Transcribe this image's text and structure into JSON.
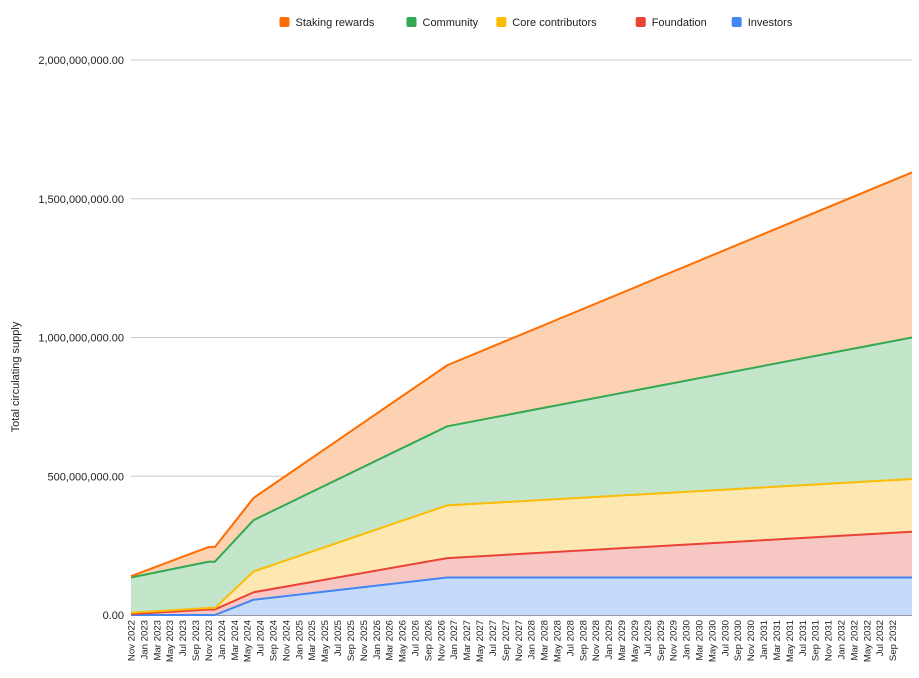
{
  "chart_data": {
    "type": "area",
    "stacked": true,
    "ylabel": "Total circulating supply",
    "ylim": [
      0,
      2000000000
    ],
    "grid": true,
    "legend_position": "top",
    "y_ticks": [
      {
        "value": 0,
        "label": "0.00"
      },
      {
        "value": 500000000,
        "label": "500,000,000.00"
      },
      {
        "value": 1000000000,
        "label": "1,000,000,000.00"
      },
      {
        "value": 1500000000,
        "label": "1,500,000,000.00"
      },
      {
        "value": 2000000000,
        "label": "2,000,000,000.00"
      }
    ],
    "x_tick_labels": [
      "Nov 2022",
      "Jan 2023",
      "Mar 2023",
      "May 2023",
      "Jul 2023",
      "Sep 2023",
      "Nov 2023",
      "Jan 2024",
      "Mar 2024",
      "May 2024",
      "Jul 2024",
      "Sep 2024",
      "Nov 2024",
      "Jan 2025",
      "Mar 2025",
      "May 2025",
      "Jul 2025",
      "Sep 2025",
      "Nov 2025",
      "Jan 2026",
      "Mar 2026",
      "May 2026",
      "Jul 2026",
      "Sep 2026",
      "Nov 2026",
      "Jan 2027",
      "Mar 2027",
      "May 2027",
      "Jul 2027",
      "Sep 2027",
      "Nov 2027",
      "Jan 2028",
      "Mar 2028",
      "May 2028",
      "Jul 2028",
      "Sep 2028",
      "Nov 2028",
      "Jan 2029",
      "Mar 2029",
      "May 2029",
      "Jul 2029",
      "Sep 2029",
      "Nov 2029",
      "Jan 2030",
      "Mar 2030",
      "May 2030",
      "Jul 2030",
      "Sep 2030",
      "Nov 2030",
      "Jan 2031",
      "Mar 2031",
      "May 2031",
      "Jul 2031",
      "Sep 2031",
      "Nov 2031",
      "Jan 2032",
      "Mar 2032",
      "May 2032",
      "Jul 2032",
      "Sep 2032"
    ],
    "x": [
      "Nov 2022",
      "Nov 2023",
      "Dec 2023",
      "Jun 2024",
      "Dec 2026",
      "Dec 2032"
    ],
    "series": [
      {
        "name": "Investors",
        "color": "#4285f4",
        "fill": "#c6dafc",
        "values": [
          0,
          0,
          0,
          55000000,
          135000000,
          135000000
        ]
      },
      {
        "name": "Foundation",
        "color": "#ea4335",
        "fill": "#f6c7c3",
        "values": [
          3000000,
          20000000,
          20000000,
          27000000,
          70000000,
          165000000
        ]
      },
      {
        "name": "Core contributors",
        "color": "#fbbc04",
        "fill": "#fde8b1",
        "values": [
          5000000,
          5000000,
          5000000,
          75000000,
          190000000,
          190000000
        ]
      },
      {
        "name": "Community",
        "color": "#34a853",
        "fill": "#c3e5c9",
        "values": [
          127000000,
          167000000,
          167000000,
          185000000,
          285000000,
          510000000
        ]
      },
      {
        "name": "Staking rewards",
        "color": "#ff6d01",
        "fill": "#fdd2b2",
        "values": [
          5000000,
          53000000,
          53000000,
          80000000,
          220000000,
          595000000
        ]
      }
    ],
    "legend_order": [
      "Staking rewards",
      "Community",
      "Core contributors",
      "Foundation",
      "Investors"
    ]
  }
}
